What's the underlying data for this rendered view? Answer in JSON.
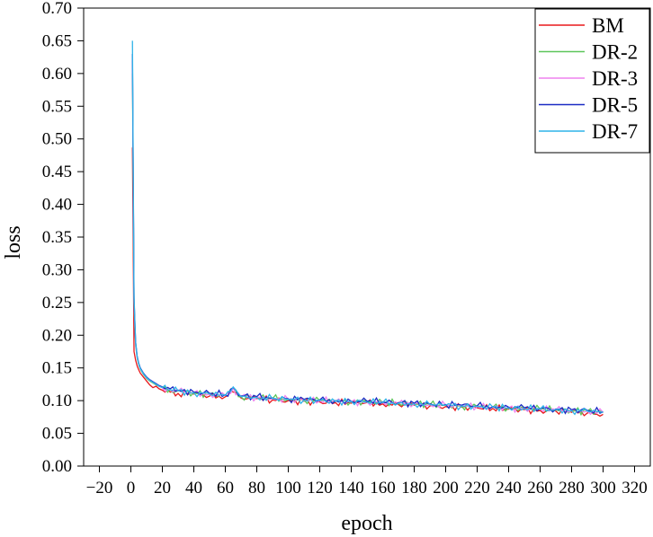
{
  "chart_data": {
    "type": "line",
    "xlabel": "epoch",
    "ylabel": "loss",
    "xlim": [
      -30,
      330
    ],
    "ylim": [
      0,
      0.7
    ],
    "x_ticks": [
      -20,
      0,
      20,
      40,
      60,
      80,
      100,
      120,
      140,
      160,
      180,
      200,
      220,
      240,
      260,
      280,
      300,
      320
    ],
    "y_ticks": [
      "0.00",
      "0.05",
      "0.10",
      "0.15",
      "0.20",
      "0.25",
      "0.30",
      "0.35",
      "0.40",
      "0.45",
      "0.50",
      "0.55",
      "0.60",
      "0.65",
      "0.70"
    ],
    "grid": false,
    "legend_position": "top-right",
    "series": [
      {
        "name": "BM",
        "color": "#e8191c",
        "x": [
          1,
          2,
          3,
          4,
          5,
          6,
          8,
          10,
          12,
          14,
          16,
          18,
          20,
          25,
          30,
          40,
          50,
          60,
          65,
          70,
          80,
          90,
          100,
          110,
          120,
          130,
          140,
          150,
          160,
          170,
          180,
          190,
          200,
          210,
          220,
          230,
          240,
          250,
          260,
          270,
          280,
          290,
          300
        ],
        "y": [
          0.487,
          0.175,
          0.162,
          0.153,
          0.147,
          0.142,
          0.136,
          0.13,
          0.124,
          0.12,
          0.122,
          0.118,
          0.116,
          0.113,
          0.111,
          0.11,
          0.107,
          0.106,
          0.113,
          0.104,
          0.103,
          0.101,
          0.1,
          0.099,
          0.098,
          0.097,
          0.096,
          0.097,
          0.095,
          0.094,
          0.093,
          0.092,
          0.091,
          0.09,
          0.089,
          0.088,
          0.087,
          0.086,
          0.085,
          0.084,
          0.082,
          0.081,
          0.079
        ]
      },
      {
        "name": "DR-2",
        "color": "#5cc65a",
        "x": [
          1,
          2,
          3,
          4,
          5,
          6,
          8,
          10,
          12,
          14,
          16,
          18,
          20,
          25,
          30,
          40,
          50,
          60,
          65,
          70,
          80,
          90,
          100,
          110,
          120,
          130,
          140,
          150,
          160,
          170,
          180,
          190,
          200,
          210,
          220,
          230,
          240,
          250,
          260,
          270,
          280,
          290,
          300
        ],
        "y": [
          0.6,
          0.245,
          0.185,
          0.165,
          0.155,
          0.148,
          0.14,
          0.134,
          0.13,
          0.127,
          0.124,
          0.122,
          0.12,
          0.117,
          0.115,
          0.112,
          0.11,
          0.108,
          0.118,
          0.106,
          0.105,
          0.103,
          0.102,
          0.101,
          0.1,
          0.099,
          0.099,
          0.098,
          0.097,
          0.096,
          0.095,
          0.094,
          0.093,
          0.092,
          0.091,
          0.09,
          0.089,
          0.088,
          0.087,
          0.086,
          0.085,
          0.084,
          0.082
        ]
      },
      {
        "name": "DR-3",
        "color": "#ee82ee",
        "x": [
          1,
          2,
          3,
          4,
          5,
          6,
          8,
          10,
          12,
          14,
          16,
          18,
          20,
          25,
          30,
          40,
          50,
          60,
          65,
          70,
          80,
          90,
          100,
          110,
          120,
          130,
          140,
          150,
          160,
          170,
          180,
          190,
          200,
          210,
          220,
          230,
          240,
          250,
          260,
          270,
          280,
          290,
          300
        ],
        "y": [
          0.62,
          0.25,
          0.188,
          0.166,
          0.156,
          0.149,
          0.141,
          0.135,
          0.131,
          0.128,
          0.125,
          0.122,
          0.12,
          0.117,
          0.115,
          0.112,
          0.11,
          0.108,
          0.119,
          0.106,
          0.105,
          0.103,
          0.102,
          0.101,
          0.1,
          0.099,
          0.098,
          0.098,
          0.097,
          0.096,
          0.095,
          0.094,
          0.093,
          0.092,
          0.091,
          0.09,
          0.089,
          0.088,
          0.087,
          0.086,
          0.085,
          0.084,
          0.082
        ]
      },
      {
        "name": "DR-5",
        "color": "#1a2bc4",
        "x": [
          1,
          2,
          3,
          4,
          5,
          6,
          8,
          10,
          12,
          14,
          16,
          18,
          20,
          25,
          30,
          40,
          50,
          60,
          65,
          70,
          80,
          90,
          100,
          110,
          120,
          130,
          140,
          150,
          160,
          170,
          180,
          190,
          200,
          210,
          220,
          230,
          240,
          250,
          260,
          270,
          280,
          290,
          300
        ],
        "y": [
          0.63,
          0.255,
          0.19,
          0.168,
          0.157,
          0.15,
          0.142,
          0.136,
          0.132,
          0.129,
          0.126,
          0.123,
          0.121,
          0.118,
          0.116,
          0.113,
          0.111,
          0.109,
          0.12,
          0.107,
          0.106,
          0.104,
          0.103,
          0.102,
          0.101,
          0.1,
          0.099,
          0.099,
          0.098,
          0.097,
          0.096,
          0.095,
          0.094,
          0.093,
          0.092,
          0.091,
          0.09,
          0.089,
          0.088,
          0.087,
          0.086,
          0.085,
          0.083
        ]
      },
      {
        "name": "DR-7",
        "color": "#2fb3e8",
        "x": [
          1,
          2,
          3,
          4,
          5,
          6,
          8,
          10,
          12,
          14,
          16,
          18,
          20,
          25,
          30,
          40,
          50,
          60,
          65,
          70,
          80,
          90,
          100,
          110,
          120,
          130,
          140,
          150,
          160,
          170,
          180,
          190,
          200,
          210,
          220,
          230,
          240,
          250,
          260,
          270,
          280,
          290,
          300
        ],
        "y": [
          0.65,
          0.26,
          0.19,
          0.167,
          0.156,
          0.149,
          0.141,
          0.135,
          0.131,
          0.128,
          0.125,
          0.122,
          0.12,
          0.117,
          0.115,
          0.112,
          0.11,
          0.108,
          0.121,
          0.106,
          0.105,
          0.103,
          0.102,
          0.101,
          0.1,
          0.099,
          0.099,
          0.098,
          0.097,
          0.096,
          0.095,
          0.094,
          0.093,
          0.092,
          0.091,
          0.09,
          0.089,
          0.088,
          0.087,
          0.086,
          0.085,
          0.084,
          0.082
        ]
      }
    ]
  }
}
